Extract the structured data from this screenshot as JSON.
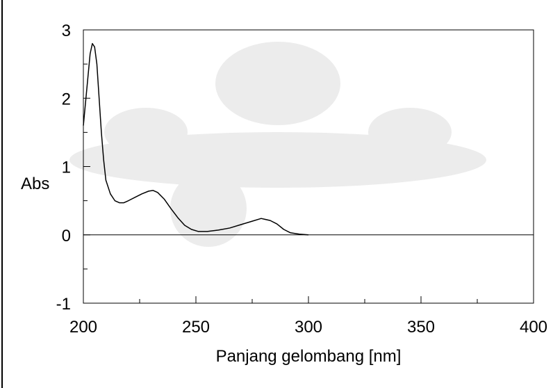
{
  "chart_data": {
    "type": "line",
    "x_label": "Panjang gelombang [nm]",
    "y_label": "Abs",
    "x": [
      200,
      202,
      203,
      204,
      205,
      206,
      207,
      208,
      209,
      210,
      212,
      214,
      216,
      218,
      220,
      223,
      226,
      229,
      231,
      233,
      236,
      239,
      242,
      245,
      248,
      251,
      255,
      260,
      265,
      270,
      275,
      279,
      283,
      286,
      289,
      292,
      296,
      300
    ],
    "values": [
      1.6,
      2.3,
      2.65,
      2.8,
      2.75,
      2.5,
      2.0,
      1.5,
      1.1,
      0.8,
      0.6,
      0.5,
      0.47,
      0.47,
      0.5,
      0.55,
      0.6,
      0.64,
      0.65,
      0.62,
      0.52,
      0.38,
      0.25,
      0.14,
      0.08,
      0.05,
      0.05,
      0.07,
      0.1,
      0.15,
      0.2,
      0.24,
      0.21,
      0.16,
      0.08,
      0.03,
      0.01,
      0
    ],
    "color": "#000000",
    "xlim": [
      200,
      400
    ],
    "xticks": [
      200,
      250,
      300,
      350,
      400
    ],
    "x_minor_ticks": [
      225,
      275,
      325,
      375
    ],
    "ylim": [
      -1,
      3
    ],
    "yticks": [
      -1,
      0,
      1,
      2,
      3
    ],
    "y_minor_ticks": [
      -0.5,
      0.5,
      1.5,
      2.5
    ],
    "zero_line": true
  }
}
